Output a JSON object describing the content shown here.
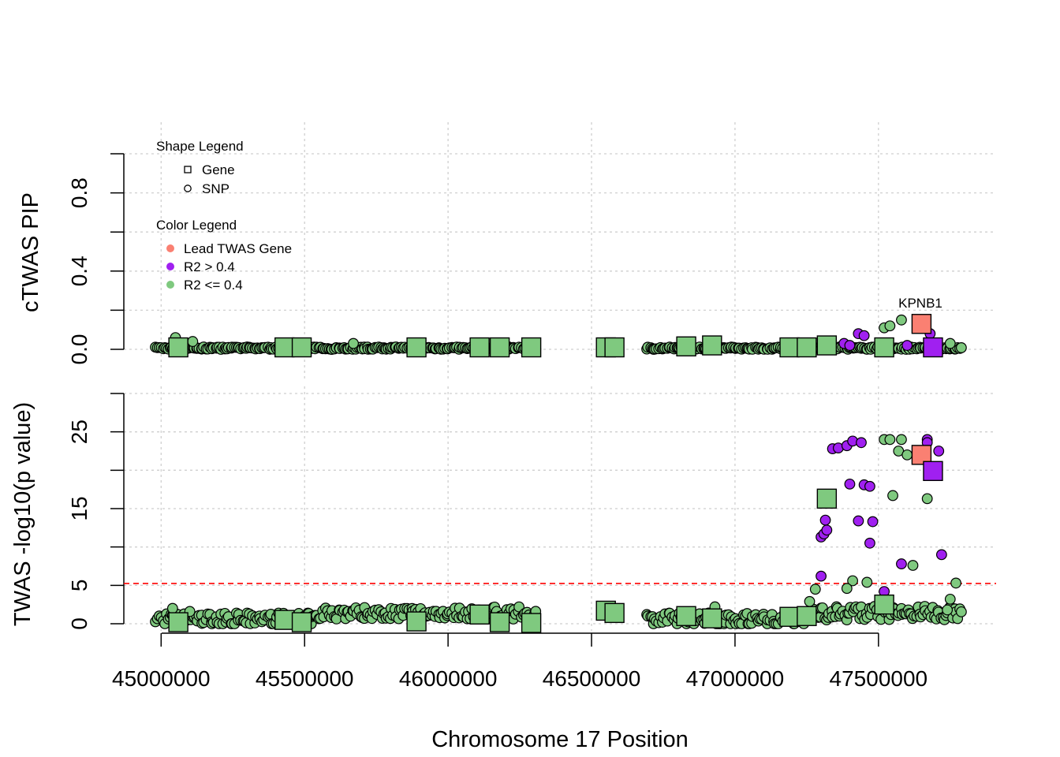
{
  "chart_data": [
    {
      "type": "scatter",
      "panel": "top",
      "ylabel": "cTWAS PIP",
      "ylim": [
        0,
        1
      ],
      "y_ticks": [
        "0.0",
        "0.4",
        "0.8"
      ],
      "grid": true,
      "shape_legend": {
        "title": "Shape Legend",
        "items": [
          {
            "label": "Gene",
            "shape": "square"
          },
          {
            "label": "SNP",
            "shape": "circle"
          }
        ]
      },
      "color_legend": {
        "title": "Color Legend",
        "items": [
          {
            "label": "Lead TWAS Gene",
            "color": "#FA8072"
          },
          {
            "label": "R2 > 0.4",
            "color": "#A020F0"
          },
          {
            "label": "R2 <= 0.4",
            "color": "#7FC97F"
          }
        ]
      },
      "annotation": "KPNB1",
      "genes": [
        {
          "x": 45060000,
          "y": 0.01,
          "color": "#7FC97F"
        },
        {
          "x": 45430000,
          "y": 0.01,
          "color": "#7FC97F"
        },
        {
          "x": 45490000,
          "y": 0.01,
          "color": "#7FC97F"
        },
        {
          "x": 45890000,
          "y": 0.01,
          "color": "#7FC97F"
        },
        {
          "x": 46110000,
          "y": 0.01,
          "color": "#7FC97F"
        },
        {
          "x": 46180000,
          "y": 0.01,
          "color": "#7FC97F"
        },
        {
          "x": 46290000,
          "y": 0.01,
          "color": "#7FC97F"
        },
        {
          "x": 46550000,
          "y": 0.01,
          "color": "#7FC97F"
        },
        {
          "x": 46580000,
          "y": 0.01,
          "color": "#7FC97F"
        },
        {
          "x": 46830000,
          "y": 0.015,
          "color": "#7FC97F"
        },
        {
          "x": 46920000,
          "y": 0.02,
          "color": "#7FC97F"
        },
        {
          "x": 47190000,
          "y": 0.01,
          "color": "#7FC97F"
        },
        {
          "x": 47250000,
          "y": 0.01,
          "color": "#7FC97F"
        },
        {
          "x": 47320000,
          "y": 0.02,
          "color": "#7FC97F"
        },
        {
          "x": 47520000,
          "y": 0.01,
          "color": "#7FC97F"
        },
        {
          "x": 47650000,
          "y": 0.13,
          "color": "#FA8072"
        },
        {
          "x": 47690000,
          "y": 0.01,
          "color": "#A020F0"
        }
      ],
      "snps_highlight": [
        {
          "x": 45050000,
          "y": 0.06,
          "color": "#7FC97F"
        },
        {
          "x": 45110000,
          "y": 0.04,
          "color": "#7FC97F"
        },
        {
          "x": 45670000,
          "y": 0.03,
          "color": "#7FC97F"
        },
        {
          "x": 47430000,
          "y": 0.08,
          "color": "#A020F0"
        },
        {
          "x": 47450000,
          "y": 0.07,
          "color": "#A020F0"
        },
        {
          "x": 47380000,
          "y": 0.03,
          "color": "#A020F0"
        },
        {
          "x": 47400000,
          "y": 0.02,
          "color": "#A020F0"
        },
        {
          "x": 47520000,
          "y": 0.11,
          "color": "#7FC97F"
        },
        {
          "x": 47540000,
          "y": 0.12,
          "color": "#7FC97F"
        },
        {
          "x": 47580000,
          "y": 0.15,
          "color": "#7FC97F"
        },
        {
          "x": 47600000,
          "y": 0.02,
          "color": "#A020F0"
        },
        {
          "x": 47680000,
          "y": 0.08,
          "color": "#A020F0"
        },
        {
          "x": 47750000,
          "y": 0.03,
          "color": "#7FC97F"
        }
      ]
    },
    {
      "type": "scatter",
      "panel": "bottom",
      "xlabel": "Chromosome 17 Position",
      "ylabel": "TWAS -log10(p value)",
      "ylim": [
        0,
        30
      ],
      "y_ticks": [
        "0",
        "5",
        "15",
        "25"
      ],
      "x_ticks": [
        "45000000",
        "45500000",
        "46000000",
        "46500000",
        "47000000",
        "47500000"
      ],
      "xlim": [
        44870000,
        47910000
      ],
      "significance_threshold": 5.25,
      "grid": true,
      "genes": [
        {
          "x": 45060000,
          "y": 0.2,
          "color": "#7FC97F"
        },
        {
          "x": 45430000,
          "y": 0.5,
          "color": "#7FC97F"
        },
        {
          "x": 45490000,
          "y": 0.2,
          "color": "#7FC97F"
        },
        {
          "x": 45890000,
          "y": 0.3,
          "color": "#7FC97F"
        },
        {
          "x": 46110000,
          "y": 1.2,
          "color": "#7FC97F"
        },
        {
          "x": 46180000,
          "y": 0.2,
          "color": "#7FC97F"
        },
        {
          "x": 46290000,
          "y": 0.1,
          "color": "#7FC97F"
        },
        {
          "x": 46550000,
          "y": 1.7,
          "color": "#7FC97F"
        },
        {
          "x": 46580000,
          "y": 1.4,
          "color": "#7FC97F"
        },
        {
          "x": 46830000,
          "y": 1.0,
          "color": "#7FC97F"
        },
        {
          "x": 46920000,
          "y": 0.7,
          "color": "#7FC97F"
        },
        {
          "x": 47190000,
          "y": 0.9,
          "color": "#7FC97F"
        },
        {
          "x": 47250000,
          "y": 1.0,
          "color": "#7FC97F"
        },
        {
          "x": 47320000,
          "y": 16.3,
          "color": "#7FC97F"
        },
        {
          "x": 47520000,
          "y": 2.5,
          "color": "#7FC97F"
        },
        {
          "x": 47650000,
          "y": 22.0,
          "color": "#FA8072"
        },
        {
          "x": 47690000,
          "y": 19.9,
          "color": "#A020F0"
        }
      ],
      "snps_highlight": [
        {
          "x": 47300000,
          "y": 11.3,
          "color": "#A020F0"
        },
        {
          "x": 47310000,
          "y": 11.7,
          "color": "#A020F0"
        },
        {
          "x": 47320000,
          "y": 12.2,
          "color": "#A020F0"
        },
        {
          "x": 47315000,
          "y": 13.5,
          "color": "#A020F0"
        },
        {
          "x": 47300000,
          "y": 6.2,
          "color": "#A020F0"
        },
        {
          "x": 47340000,
          "y": 22.8,
          "color": "#A020F0"
        },
        {
          "x": 47360000,
          "y": 22.9,
          "color": "#A020F0"
        },
        {
          "x": 47390000,
          "y": 23.2,
          "color": "#A020F0"
        },
        {
          "x": 47410000,
          "y": 23.8,
          "color": "#A020F0"
        },
        {
          "x": 47440000,
          "y": 23.6,
          "color": "#A020F0"
        },
        {
          "x": 47400000,
          "y": 18.2,
          "color": "#A020F0"
        },
        {
          "x": 47450000,
          "y": 18.1,
          "color": "#A020F0"
        },
        {
          "x": 47470000,
          "y": 17.9,
          "color": "#A020F0"
        },
        {
          "x": 47430000,
          "y": 13.4,
          "color": "#A020F0"
        },
        {
          "x": 47480000,
          "y": 13.3,
          "color": "#A020F0"
        },
        {
          "x": 47470000,
          "y": 10.5,
          "color": "#A020F0"
        },
        {
          "x": 47520000,
          "y": 4.2,
          "color": "#A020F0"
        },
        {
          "x": 47580000,
          "y": 7.8,
          "color": "#A020F0"
        },
        {
          "x": 47670000,
          "y": 24.0,
          "color": "#A020F0"
        },
        {
          "x": 47670000,
          "y": 23.6,
          "color": "#A020F0"
        },
        {
          "x": 47710000,
          "y": 22.5,
          "color": "#A020F0"
        },
        {
          "x": 47720000,
          "y": 9.0,
          "color": "#A020F0"
        },
        {
          "x": 47520000,
          "y": 24.0,
          "color": "#7FC97F"
        },
        {
          "x": 47540000,
          "y": 24.0,
          "color": "#7FC97F"
        },
        {
          "x": 47580000,
          "y": 24.0,
          "color": "#7FC97F"
        },
        {
          "x": 47570000,
          "y": 22.5,
          "color": "#7FC97F"
        },
        {
          "x": 47600000,
          "y": 22.0,
          "color": "#7FC97F"
        },
        {
          "x": 47550000,
          "y": 16.7,
          "color": "#7FC97F"
        },
        {
          "x": 47670000,
          "y": 16.3,
          "color": "#7FC97F"
        },
        {
          "x": 47620000,
          "y": 7.6,
          "color": "#7FC97F"
        },
        {
          "x": 47280000,
          "y": 4.5,
          "color": "#7FC97F"
        },
        {
          "x": 47410000,
          "y": 5.6,
          "color": "#7FC97F"
        },
        {
          "x": 47460000,
          "y": 5.4,
          "color": "#7FC97F"
        },
        {
          "x": 47390000,
          "y": 4.6,
          "color": "#7FC97F"
        },
        {
          "x": 47770000,
          "y": 5.3,
          "color": "#7FC97F"
        },
        {
          "x": 47260000,
          "y": 2.9,
          "color": "#7FC97F"
        },
        {
          "x": 47750000,
          "y": 3.2,
          "color": "#7FC97F"
        },
        {
          "x": 47740000,
          "y": 1.8,
          "color": "#7FC97F"
        },
        {
          "x": 45040000,
          "y": 2.0,
          "color": "#7FC97F"
        },
        {
          "x": 45100000,
          "y": 1.6,
          "color": "#7FC97F"
        },
        {
          "x": 46930000,
          "y": 2.2,
          "color": "#7FC97F"
        }
      ]
    }
  ]
}
